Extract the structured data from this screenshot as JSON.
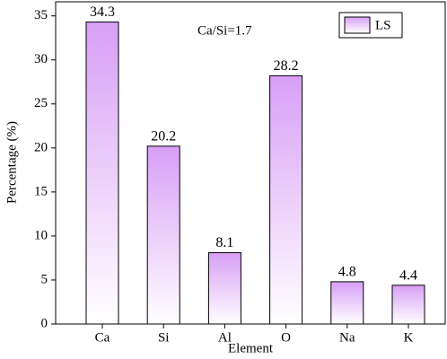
{
  "chart_data": {
    "type": "bar",
    "categories": [
      "Ca",
      "Si",
      "Al",
      "O",
      "Na",
      "K"
    ],
    "series": [
      {
        "name": "LS",
        "color": "#d89ff6",
        "values": [
          34.3,
          20.2,
          8.1,
          28.2,
          4.8,
          4.4
        ]
      }
    ],
    "x_label": "Element",
    "y_label": "Percentage (%)",
    "annotation": "Ca/Si=1.7",
    "ylim": [
      0,
      36.6
    ],
    "yticks": [
      0,
      5,
      10,
      15,
      20,
      25,
      30,
      35
    ],
    "legend": "top-right"
  }
}
